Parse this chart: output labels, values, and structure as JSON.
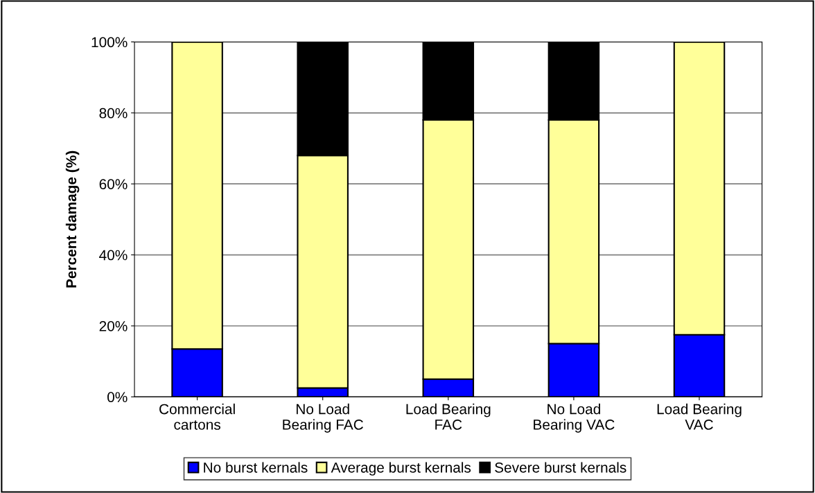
{
  "chart_data": {
    "type": "bar",
    "stacked": true,
    "ylabel": "Percent damage (%)",
    "categories": [
      "Commercial\ncartons",
      "No Load\nBearing FAC",
      "Load Bearing\nFAC",
      "No Load\nBearing VAC",
      "Load Bearing\nVAC"
    ],
    "series": [
      {
        "name": "No burst kernals",
        "color": "#0000ff",
        "values": [
          13.5,
          2.5,
          5,
          15,
          17.5
        ]
      },
      {
        "name": "Average burst kernals",
        "color": "#ffff99",
        "values": [
          86.5,
          65.5,
          73,
          63,
          82.5
        ]
      },
      {
        "name": "Severe burst kernals",
        "color": "#000000",
        "values": [
          0,
          32,
          22,
          22,
          0
        ]
      }
    ],
    "ylim": [
      0,
      100
    ],
    "yticks": [
      {
        "value": 0,
        "label": "0%"
      },
      {
        "value": 20,
        "label": "20%"
      },
      {
        "value": 40,
        "label": "40%"
      },
      {
        "value": 60,
        "label": "60%"
      },
      {
        "value": 80,
        "label": "80%"
      },
      {
        "value": 100,
        "label": "100%"
      }
    ],
    "grid": "y",
    "legend": "bottom"
  }
}
